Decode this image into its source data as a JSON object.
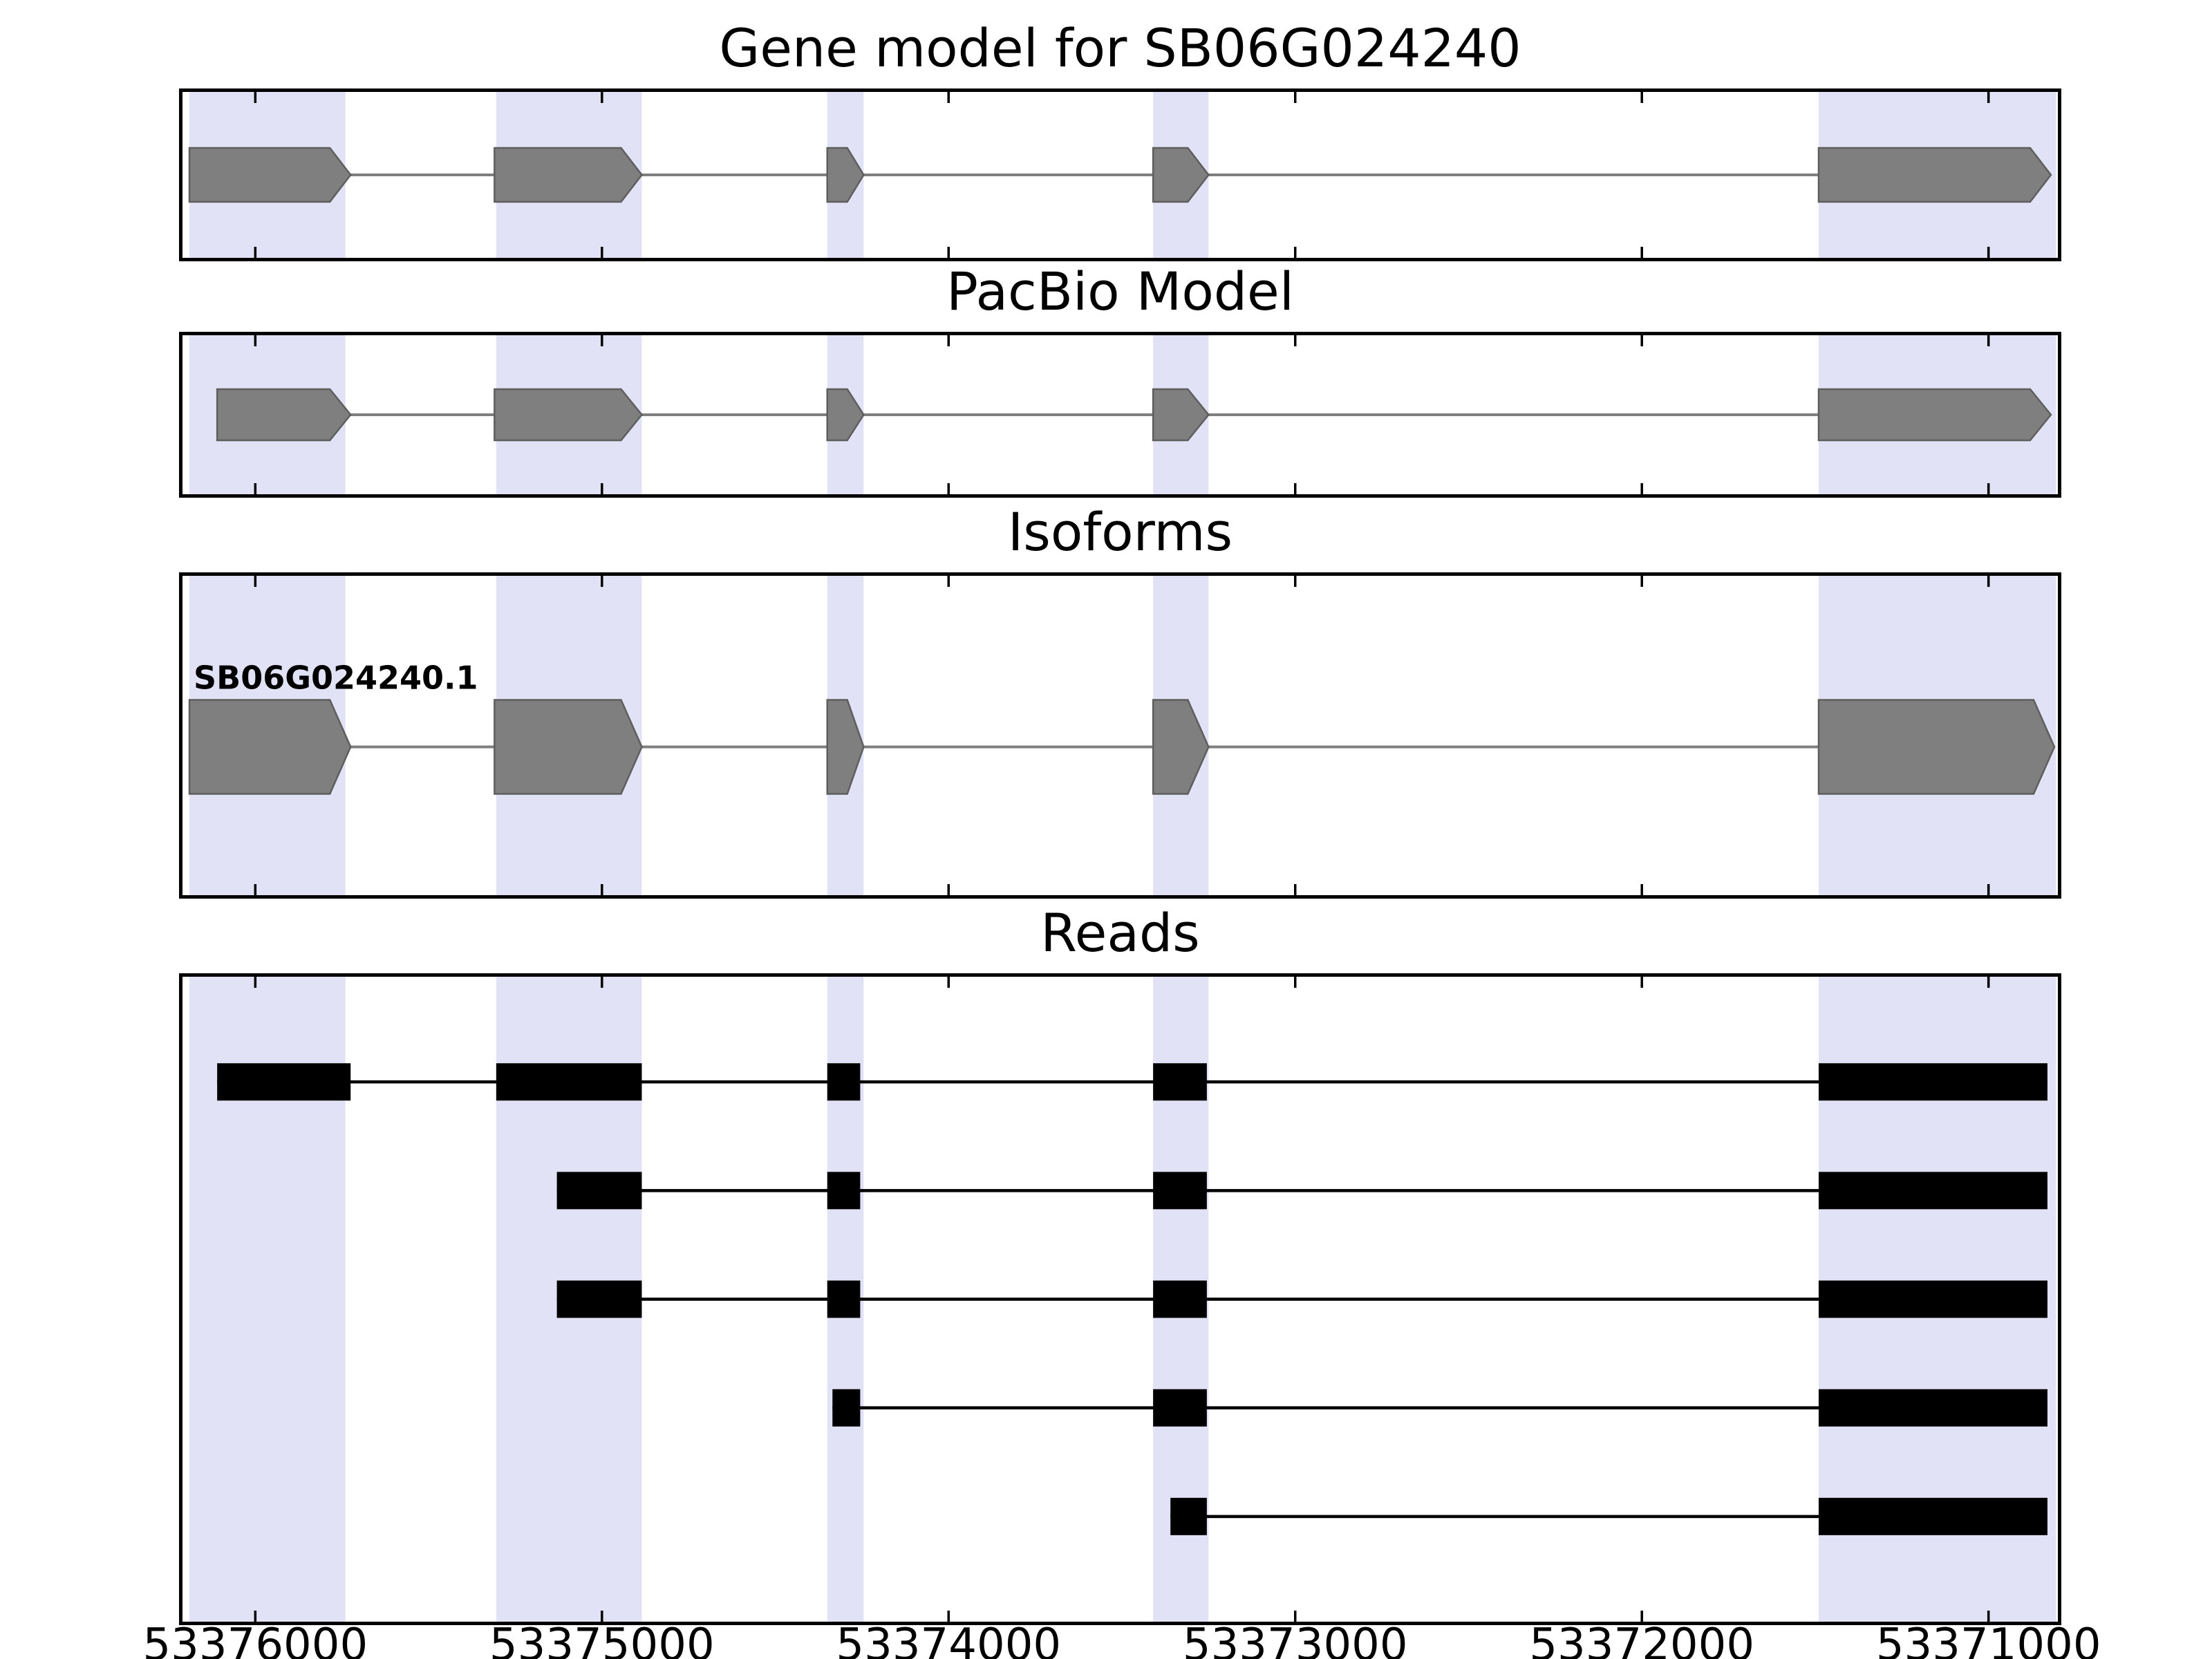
{
  "figure": {
    "background_color": "#ffffff"
  },
  "chart_data": {
    "type": "genomic-tracks",
    "title": "Gene model for SB06G024240",
    "x_axis": {
      "direction": "decreasing",
      "left_value": 53376220,
      "right_value": 53370790,
      "ticks": [
        53376000,
        53375000,
        53374000,
        53373000,
        53372000,
        53371000
      ],
      "tick_labels": [
        "53376000",
        "53375000",
        "53374000",
        "53373000",
        "53372000",
        "53371000"
      ]
    },
    "colors": {
      "highlight_band": "#e2e2f6",
      "model_fill": "#7f7f7f",
      "model_edge": "#5e5e5e",
      "model_intron": "#7f7f7f",
      "read_fill": "#000000",
      "read_intron": "#000000",
      "panel_border": "#000000",
      "tick": "#000000",
      "text": "#000000",
      "background": "#ffffff"
    },
    "highlight_regions": [
      {
        "start": 53376190,
        "end": 53375740
      },
      {
        "start": 53375305,
        "end": 53374885
      },
      {
        "start": 53374350,
        "end": 53374245
      },
      {
        "start": 53373410,
        "end": 53373250
      },
      {
        "start": 53371490,
        "end": 53370805
      }
    ],
    "panels": [
      {
        "id": "gene-model",
        "title": "Gene model for SB06G024240",
        "style": "arrow_model",
        "rows": [
          {
            "label": "",
            "exons": [
              [
                53376190,
                53375725
              ],
              [
                53375310,
                53374885
              ],
              [
                53374350,
                53374245
              ],
              [
                53373410,
                53373250
              ],
              [
                53371490,
                53370820
              ]
            ]
          }
        ]
      },
      {
        "id": "pacbio-model",
        "title": "PacBio Model",
        "style": "arrow_model",
        "rows": [
          {
            "label": "",
            "exons": [
              [
                53376110,
                53375725
              ],
              [
                53375310,
                53374885
              ],
              [
                53374350,
                53374245
              ],
              [
                53373410,
                53373250
              ],
              [
                53371490,
                53370820
              ]
            ]
          }
        ]
      },
      {
        "id": "isoforms",
        "title": "Isoforms",
        "style": "arrow_model",
        "rows": [
          {
            "label": "SB06G024240.1",
            "exons": [
              [
                53376190,
                53375725
              ],
              [
                53375310,
                53374885
              ],
              [
                53374350,
                53374245
              ],
              [
                53373410,
                53373250
              ],
              [
                53371490,
                53370810
              ]
            ]
          }
        ]
      },
      {
        "id": "reads",
        "title": "Reads",
        "style": "read",
        "rows": [
          {
            "label": "",
            "exons": [
              [
                53376110,
                53375725
              ],
              [
                53375305,
                53374885
              ],
              [
                53374350,
                53374255
              ],
              [
                53373410,
                53373255
              ],
              [
                53371490,
                53370830
              ]
            ]
          },
          {
            "label": "",
            "exons": [
              [
                53375130,
                53374885
              ],
              [
                53374350,
                53374255
              ],
              [
                53373410,
                53373255
              ],
              [
                53371490,
                53370830
              ]
            ]
          },
          {
            "label": "",
            "exons": [
              [
                53375130,
                53374885
              ],
              [
                53374350,
                53374255
              ],
              [
                53373410,
                53373255
              ],
              [
                53371490,
                53370830
              ]
            ]
          },
          {
            "label": "",
            "exons": [
              [
                53374335,
                53374255
              ],
              [
                53373410,
                53373255
              ],
              [
                53371490,
                53370830
              ]
            ]
          },
          {
            "label": "",
            "exons": [
              [
                53373360,
                53373255
              ],
              [
                53371490,
                53370830
              ]
            ]
          }
        ]
      }
    ]
  }
}
